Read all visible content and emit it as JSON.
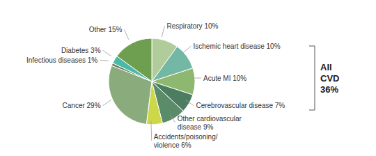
{
  "chart_data": {
    "type": "pie",
    "categories": [
      "Respiratory 10%",
      "Ischemic heart disease 10%",
      "Acute MI 10%",
      "Cerebrovascular disease 7%",
      "Other cardiovascular\ndisease 9%",
      "Accidents/poisoning/\nviolence 6%",
      "Cancer 29%",
      "Infectious diseases 1%",
      "Diabetes 3%",
      "Other 15%"
    ],
    "values": [
      10,
      10,
      10,
      7,
      9,
      6,
      29,
      1,
      3,
      15
    ],
    "colors": [
      "#b0cc9a",
      "#72b8a4",
      "#8eb870",
      "#4d7d60",
      "#5a8c6a",
      "#ccd84a",
      "#8aab7c",
      "#687a58",
      "#4cb8a8",
      "#6e9e50"
    ],
    "annotation": "All\nCVD\n36%"
  }
}
